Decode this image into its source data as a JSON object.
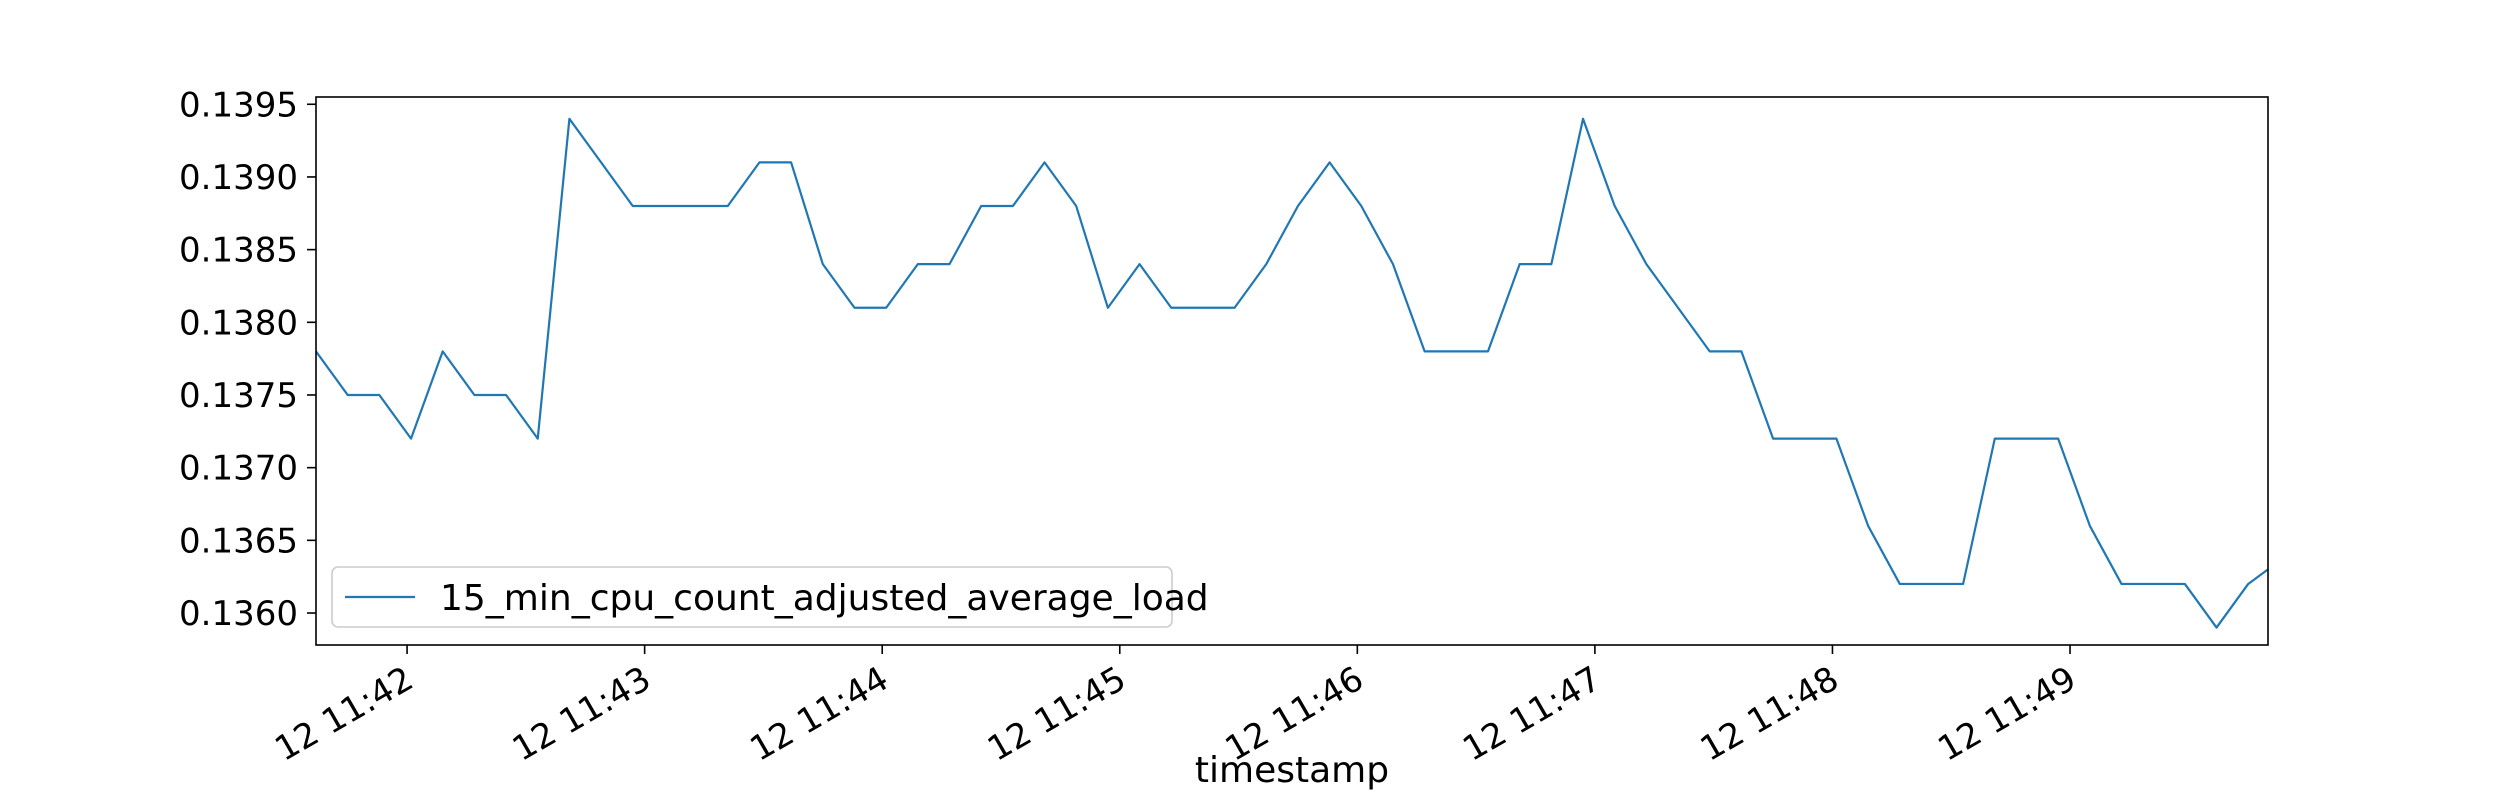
{
  "chart_data": {
    "type": "line",
    "title": "",
    "xlabel": "timestamp",
    "ylabel": "",
    "x_ticks": [
      "12 11:42",
      "12 11:43",
      "12 11:44",
      "12 11:45",
      "12 11:46",
      "12 11:47",
      "12 11:48",
      "12 11:49"
    ],
    "x_tick_times": [
      "11:42:00",
      "11:43:00",
      "11:44:00",
      "11:45:00",
      "11:46:00",
      "11:47:00",
      "11:48:00",
      "11:49:00"
    ],
    "y_ticks": [
      "0.1360",
      "0.1365",
      "0.1370",
      "0.1375",
      "0.1380",
      "0.1385",
      "0.1390",
      "0.1395"
    ],
    "xlim": [
      "11:41:37",
      "11:49:50"
    ],
    "ylim": [
      0.13578,
      0.13955
    ],
    "grid": false,
    "legend_position": "lower-left",
    "line_color": "#1f77b4",
    "series": [
      {
        "name": "15_min_cpu_count_adjusted_average_load",
        "x": [
          "11:41:37",
          "11:41:45",
          "11:41:53",
          "11:42:01",
          "11:42:09",
          "11:42:17",
          "11:42:25",
          "11:42:33",
          "11:42:41",
          "11:42:49",
          "11:42:57",
          "11:43:05",
          "11:43:13",
          "11:43:21",
          "11:43:29",
          "11:43:37",
          "11:43:45",
          "11:43:53",
          "11:44:01",
          "11:44:09",
          "11:44:17",
          "11:44:25",
          "11:44:33",
          "11:44:41",
          "11:44:49",
          "11:44:57",
          "11:45:05",
          "11:45:13",
          "11:45:21",
          "11:45:29",
          "11:45:37",
          "11:45:45",
          "11:45:53",
          "11:46:01",
          "11:46:09",
          "11:46:17",
          "11:46:25",
          "11:46:33",
          "11:46:41",
          "11:46:49",
          "11:46:57",
          "11:47:05",
          "11:47:13",
          "11:47:21",
          "11:47:29",
          "11:47:37",
          "11:47:45",
          "11:47:53",
          "11:48:01",
          "11:48:09",
          "11:48:17",
          "11:48:25",
          "11:48:33",
          "11:48:41",
          "11:48:49",
          "11:48:57",
          "11:49:05",
          "11:49:13",
          "11:49:21",
          "11:49:29",
          "11:49:37",
          "11:49:45",
          "11:49:50"
        ],
        "y": [
          0.1378,
          0.1375,
          0.1375,
          0.1372,
          0.1378,
          0.1375,
          0.1375,
          0.1372,
          0.1394,
          0.1391,
          0.1388,
          0.1388,
          0.1388,
          0.1388,
          0.1391,
          0.1391,
          0.1384,
          0.1381,
          0.1381,
          0.1384,
          0.1384,
          0.1388,
          0.1388,
          0.1391,
          0.1388,
          0.1381,
          0.1384,
          0.1381,
          0.1381,
          0.1381,
          0.1384,
          0.1388,
          0.1391,
          0.1388,
          0.1384,
          0.1378,
          0.1378,
          0.1378,
          0.1384,
          0.1384,
          0.1394,
          0.1388,
          0.1384,
          0.1381,
          0.1378,
          0.1378,
          0.1372,
          0.1372,
          0.1372,
          0.1366,
          0.1362,
          0.1362,
          0.1362,
          0.1372,
          0.1372,
          0.1372,
          0.1366,
          0.1362,
          0.1362,
          0.1362,
          0.1359,
          0.1362,
          0.1363
        ]
      }
    ]
  }
}
